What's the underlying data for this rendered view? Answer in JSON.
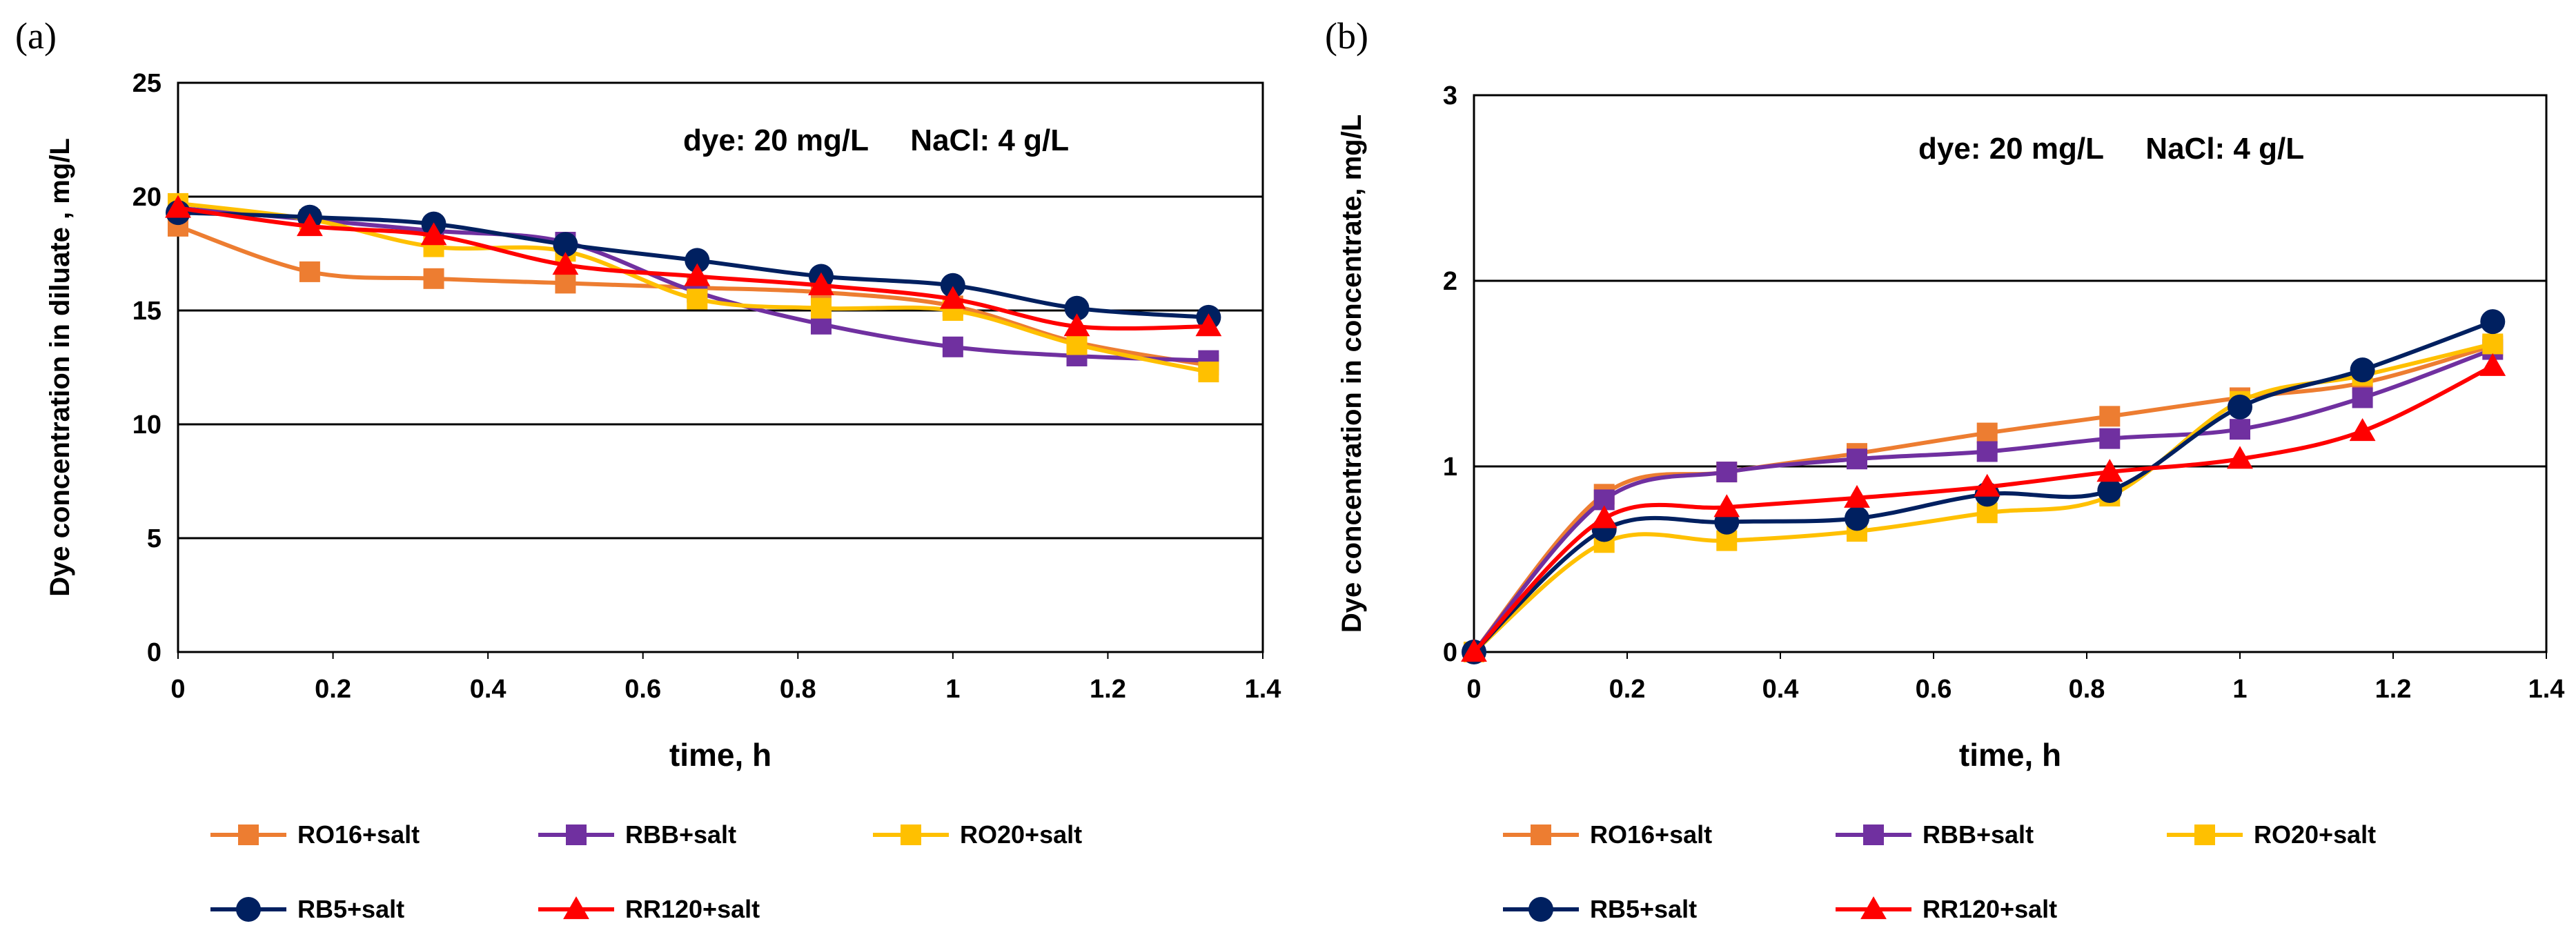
{
  "chart_data": [
    {
      "type": "line",
      "panel_label": "(a)",
      "title": "",
      "xlabel": "time, h",
      "ylabel": "Dye concentration in diluate , mg/L",
      "xlim": [
        0,
        1.4
      ],
      "ylim": [
        0,
        25
      ],
      "xticks": [
        "0",
        "0.2",
        "0.4",
        "0.6",
        "0.8",
        "1",
        "1.2",
        "1.4"
      ],
      "yticks": [
        "0",
        "5",
        "10",
        "15",
        "20",
        "25"
      ],
      "annotation": "dye: 20 mg/L     NaCl: 4 g/L",
      "grid": "horizontal",
      "legend": "bottom",
      "x": [
        0,
        0.17,
        0.33,
        0.5,
        0.67,
        0.83,
        1.0,
        1.16,
        1.33
      ],
      "series": [
        {
          "name": "RO16+salt",
          "color": "#ED7D31",
          "marker": "square",
          "values": [
            18.7,
            16.7,
            16.4,
            16.2,
            16.0,
            15.8,
            15.2,
            13.6,
            12.6
          ]
        },
        {
          "name": "RBB+salt",
          "color": "#7030A0",
          "marker": "square",
          "values": [
            19.5,
            19.0,
            18.5,
            18.0,
            15.8,
            14.4,
            13.4,
            13.0,
            12.8
          ]
        },
        {
          "name": "RO20+salt",
          "color": "#FFC000",
          "marker": "square",
          "values": [
            19.7,
            19.0,
            17.8,
            17.6,
            15.5,
            15.1,
            15.0,
            13.5,
            12.3
          ]
        },
        {
          "name": "RB5+salt",
          "color": "#002060",
          "marker": "circle",
          "values": [
            19.3,
            19.1,
            18.8,
            17.9,
            17.2,
            16.5,
            16.1,
            15.1,
            14.7
          ]
        },
        {
          "name": "RR120+salt",
          "color": "#FF0000",
          "marker": "triangle",
          "values": [
            19.5,
            18.7,
            18.3,
            17.0,
            16.5,
            16.1,
            15.5,
            14.3,
            14.3
          ]
        }
      ]
    },
    {
      "type": "line",
      "panel_label": "(b)",
      "title": "",
      "xlabel": "time, h",
      "ylabel": "Dye concentration in concentrate, mg/L",
      "xlim": [
        0,
        1.4
      ],
      "ylim": [
        0,
        3
      ],
      "xticks": [
        "0",
        "0.2",
        "0.4",
        "0.6",
        "0.8",
        "1",
        "1.2",
        "1.4"
      ],
      "yticks": [
        "0",
        "1",
        "2",
        "3"
      ],
      "annotation": "dye: 20 mg/L     NaCl: 4 g/L",
      "grid": "horizontal",
      "legend": "bottom",
      "x": [
        0,
        0.17,
        0.33,
        0.5,
        0.67,
        0.83,
        1.0,
        1.16,
        1.33
      ],
      "series": [
        {
          "name": "RO16+salt",
          "color": "#ED7D31",
          "marker": "square",
          "values": [
            0,
            0.85,
            0.97,
            1.07,
            1.18,
            1.27,
            1.37,
            1.45,
            1.65
          ]
        },
        {
          "name": "RBB+salt",
          "color": "#7030A0",
          "marker": "square",
          "values": [
            0,
            0.82,
            0.97,
            1.04,
            1.08,
            1.15,
            1.2,
            1.37,
            1.63
          ]
        },
        {
          "name": "RO20+salt",
          "color": "#FFC000",
          "marker": "square",
          "values": [
            0,
            0.59,
            0.6,
            0.65,
            0.75,
            0.84,
            1.35,
            1.49,
            1.66
          ]
        },
        {
          "name": "RB5+salt",
          "color": "#002060",
          "marker": "circle",
          "values": [
            0,
            0.66,
            0.7,
            0.72,
            0.85,
            0.87,
            1.32,
            1.52,
            1.78
          ]
        },
        {
          "name": "RR120+salt",
          "color": "#FF0000",
          "marker": "triangle",
          "values": [
            0,
            0.72,
            0.78,
            0.83,
            0.89,
            0.97,
            1.04,
            1.19,
            1.54
          ]
        }
      ]
    }
  ]
}
